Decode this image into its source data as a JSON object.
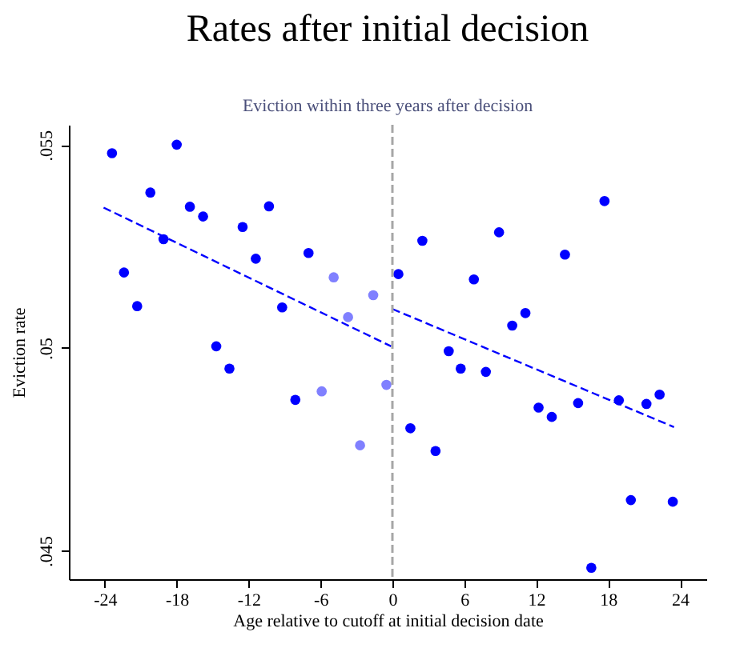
{
  "chart_data": {
    "type": "scatter",
    "title": "Rates after initial decision",
    "subtitle": "Eviction within three years after decision",
    "xlabel": "Age relative to cutoff at initial decision date",
    "ylabel": "Eviction rate",
    "xlim": [
      -27,
      26.2
    ],
    "ylim": [
      0.0443,
      0.0555
    ],
    "xticks": [
      -24,
      -18,
      -12,
      -6,
      0,
      6,
      12,
      18,
      24
    ],
    "yticks": [
      {
        "value": 0.045,
        "label": ".045"
      },
      {
        "value": 0.05,
        "label": ".05"
      },
      {
        "value": 0.055,
        "label": ".055"
      }
    ],
    "grid": false,
    "marker": "circle",
    "ref_lines": [
      {
        "axis": "x",
        "value": 0,
        "color": "#a6a6a6",
        "line_style": "dashed"
      }
    ],
    "series": [
      {
        "color": "#0000ff",
        "x": [
          -23.4,
          -22.4,
          -21.3,
          -20.2,
          -19.1,
          -18.0,
          -16.9,
          -15.8,
          -14.7,
          -13.6,
          -12.5,
          -11.4,
          -10.3,
          -9.2,
          -8.1,
          -7.0,
          0.5,
          1.5,
          2.5,
          3.6,
          4.7,
          5.7,
          6.8,
          7.8,
          8.9,
          10.0,
          11.1,
          12.2,
          13.3,
          14.4,
          15.5,
          16.6,
          17.7,
          18.9,
          19.9,
          21.2,
          22.3,
          23.4
        ],
        "values": [
          0.0548,
          0.05186,
          0.05103,
          0.05383,
          0.05268,
          0.05501,
          0.05348,
          0.05324,
          0.05004,
          0.04949,
          0.05298,
          0.0522,
          0.05349,
          0.051,
          0.04872,
          0.05234,
          0.05182,
          0.04802,
          0.05264,
          0.04746,
          0.04992,
          0.04949,
          0.05169,
          0.04941,
          0.05285,
          0.05055,
          0.05086,
          0.04853,
          0.0483,
          0.0523,
          0.04864,
          0.04458,
          0.05362,
          0.04871,
          0.04625,
          0.04862,
          0.04885,
          0.04621
        ]
      },
      {
        "color": "#8080ff",
        "x": [
          -5.9,
          -4.9,
          -3.7,
          -2.7,
          -1.6,
          -0.5
        ],
        "values": [
          0.04893,
          0.05174,
          0.05076,
          0.0476,
          0.0513,
          0.04909
        ]
      },
      {
        "type": "line",
        "color": "#0000ff",
        "line_style": "dashed",
        "marker": "none",
        "x": [
          -24.1,
          -0.1
        ],
        "values": [
          0.05346,
          0.05004
        ]
      },
      {
        "type": "line",
        "color": "#0000ff",
        "line_style": "dashed",
        "marker": "none",
        "x": [
          0,
          23.5
        ],
        "values": [
          0.05096,
          0.04805
        ]
      }
    ]
  }
}
